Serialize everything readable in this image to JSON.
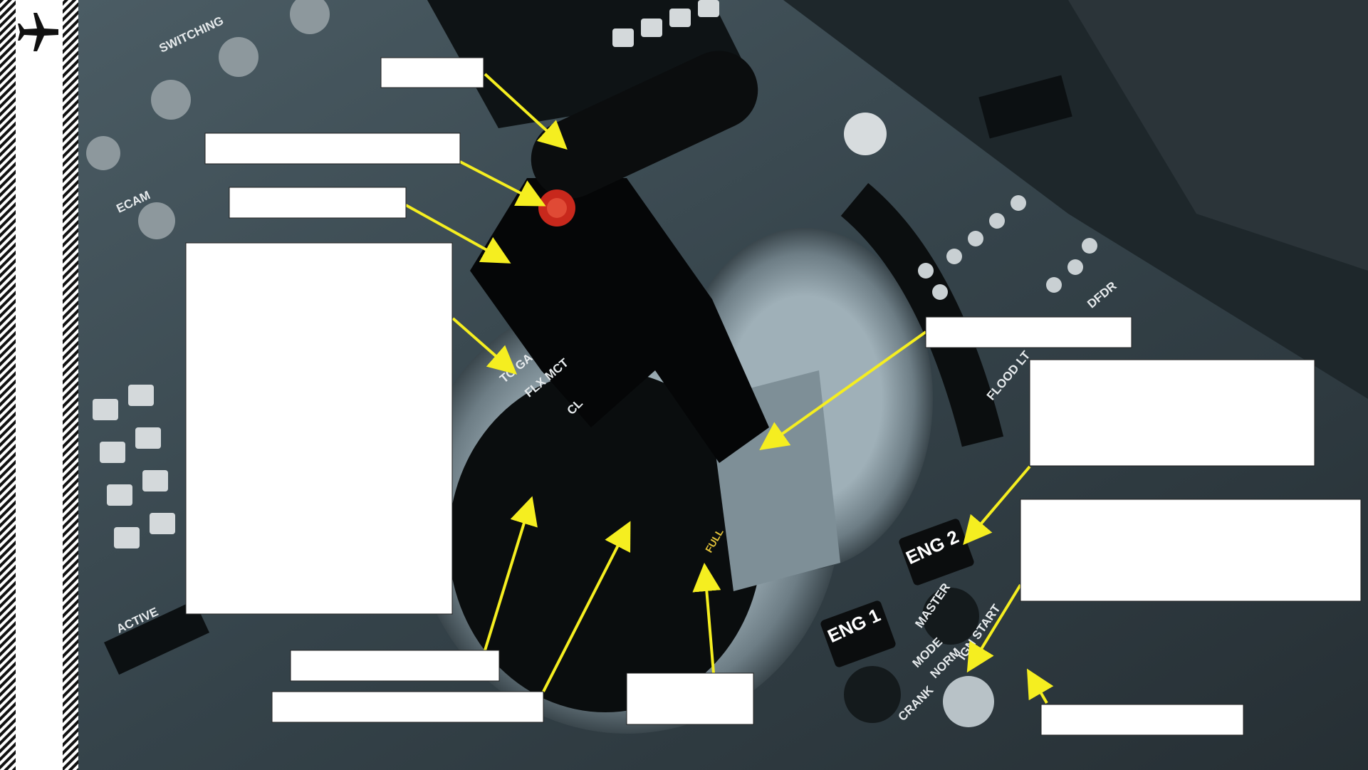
{
  "panel_labels": [
    "SWITCHING",
    "ECAM",
    "ACTIVE",
    "ENG 2",
    "ENG 1",
    "FLOOD LT",
    "DFDR",
    "MASTER",
    "MODE",
    "CRANK",
    "NORM",
    "IGN START",
    "FULL",
    "FLX MCT",
    "TO GA",
    "CL"
  ]
}
